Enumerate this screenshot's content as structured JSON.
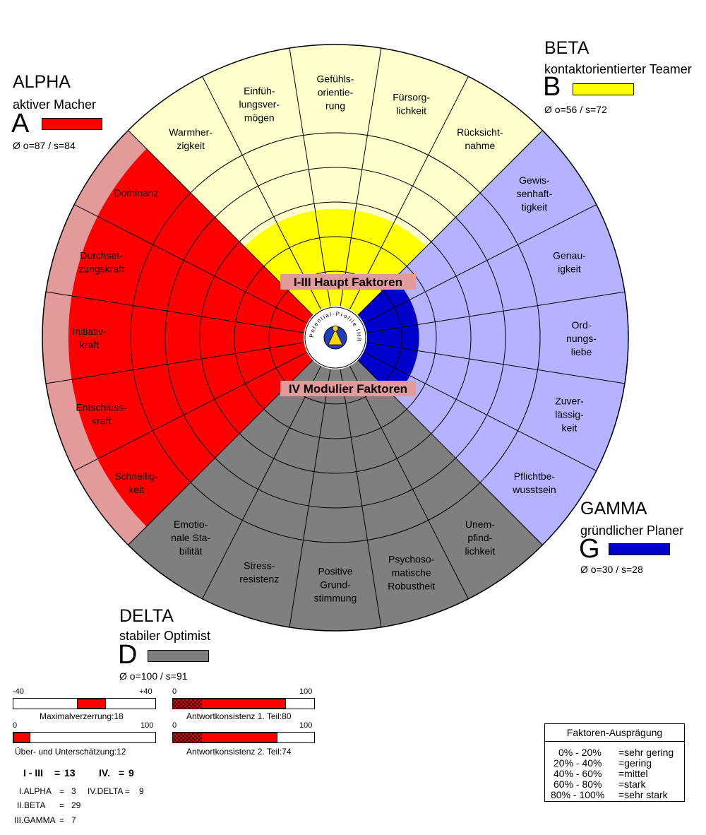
{
  "chart_data": {
    "type": "radial-sector",
    "center_labels": {
      "top": "I-III Haupt Faktoren",
      "bottom": "IV Modulier Faktoren"
    },
    "logo_text": "Potential-Profile IHR",
    "groups": [
      {
        "key": "alpha",
        "name": "ALPHA",
        "subtitle": "aktiver Macher",
        "letter": "A",
        "stats": "Ø o=87 / s=84",
        "color": "#ff0000",
        "light_color": "#e39a9a",
        "fill_fraction": 0.87,
        "factors": [
          "Schnellig-\nkeit",
          "Entschluss-\nkraft",
          "Initiativ-\nkraft",
          "Durchset-\nzungskraft",
          "Dominanz"
        ]
      },
      {
        "key": "beta",
        "name": "BETA",
        "subtitle": "kontaktorientierter Teamer",
        "letter": "B",
        "stats": "Ø o=56 / s=72",
        "color": "#ffff00",
        "light_color": "#ffffcc",
        "fill_fraction": 0.56,
        "factors": [
          "Warmher-\nzigkeit",
          "Einfüh-\nlungsver-\nmögen",
          "Gefühls-\norientie-\nrung",
          "Fürsorg-\nlichkeit",
          "Rücksicht-\nnahme"
        ]
      },
      {
        "key": "gamma",
        "name": "GAMMA",
        "subtitle": "gründlicher Planer",
        "letter": "G",
        "stats": "Ø o=30 / s=28",
        "color": "#0000cc",
        "light_color": "#b3b3ff",
        "fill_fraction": 0.3,
        "factors": [
          "Gewis-\nsenhaft-\ntigkeit",
          "Genau-\nigkeit",
          "Ord-\nnungs-\nliebe",
          "Zuver-\nlässig-\nkeit",
          "Pflichtbe-\nwusstsein"
        ]
      },
      {
        "key": "delta",
        "name": "DELTA",
        "subtitle": "stabiler Optimist",
        "letter": "D",
        "stats": "Ø o=100 / s=91",
        "color": "#7f7f7f",
        "light_color": "#7f7f7f",
        "fill_fraction": 1.0,
        "factors": [
          "Unem-\npfind-\nlichkeit",
          "Psychoso-\nmatische\nRobustheit",
          "Positive\nGrund-\nstimmung",
          "Stress-\nresistenz",
          "Emotio-\nnale Sta-\nbilität"
        ]
      }
    ],
    "scales": [
      {
        "key": "maxverz",
        "caption": "Maximalverzerrung:18",
        "min_label": "-40",
        "max_label": "+40",
        "min": -40,
        "max": 40,
        "value_from": 0,
        "value_to": 18,
        "hatch_to": null
      },
      {
        "key": "ueber",
        "caption": "Über- und Unterschätzung:12",
        "min_label": "0",
        "max_label": "100",
        "min": 0,
        "max": 100,
        "value_from": 0,
        "value_to": 12,
        "hatch_to": null
      },
      {
        "key": "konsist1",
        "caption": "Antwortkonsistenz 1. Teil:80",
        "min_label": "0",
        "max_label": "100",
        "min": 0,
        "max": 100,
        "value_from": 20,
        "value_to": 80,
        "hatch_to": 20
      },
      {
        "key": "konsist2",
        "caption": "Antwortkonsistenz 2. Teil:74",
        "min_label": "0",
        "max_label": "100",
        "min": 0,
        "max": 100,
        "value_from": 20,
        "value_to": 74,
        "hatch_to": 20
      }
    ],
    "summary": {
      "i_iii_label": "I - III",
      "eq1": "=",
      "i_iii_value": "13",
      "iv_label": "IV.",
      "eq2": "=",
      "iv_value": "9",
      "rows": [
        {
          "label": "I.ALPHA",
          "eq": "=",
          "value": "3"
        },
        {
          "label": "II.BETA",
          "eq": "=",
          "value": "29"
        },
        {
          "label": "III.GAMMA",
          "eq": "=",
          "value": "7"
        },
        {
          "label": "IV.DELTA",
          "eq": "=",
          "value": "9"
        }
      ]
    },
    "legend": {
      "title": "Faktoren-Ausprägung",
      "rows": [
        {
          "range": "0% - 20%",
          "label": "=sehr gering"
        },
        {
          "range": "20% - 40%",
          "label": "=gering"
        },
        {
          "range": "40% - 60%",
          "label": "=mittel"
        },
        {
          "range": "60% - 80%",
          "label": "=stark"
        },
        {
          "range": "80% - 100%",
          "label": "=sehr stark"
        }
      ]
    }
  }
}
